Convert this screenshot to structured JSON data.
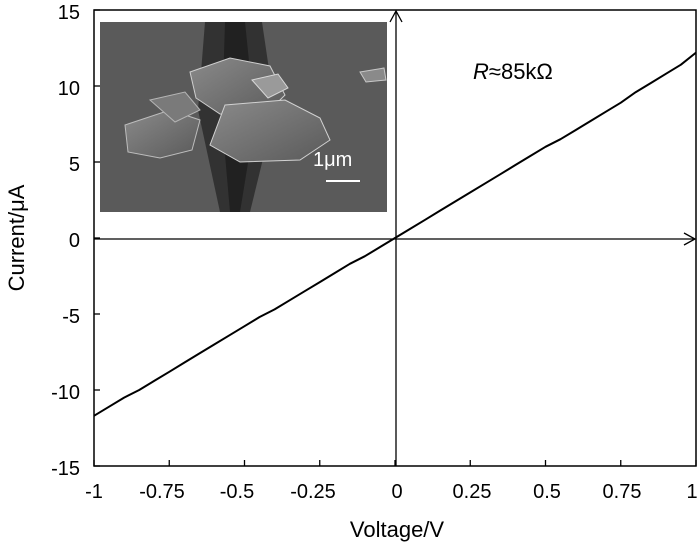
{
  "chart_data": {
    "type": "line",
    "xlabel": "Voltage/V",
    "ylabel": "Current/μA",
    "xlim": [
      -1,
      1
    ],
    "ylim": [
      -15,
      15
    ],
    "x_ticks": [
      -1,
      -0.75,
      -0.5,
      -0.25,
      0,
      0.25,
      0.5,
      0.75,
      1
    ],
    "x_tick_labels": [
      "-1",
      "-0.75",
      "-0.5",
      "-0.25",
      "0",
      "0.25",
      "0.5",
      "0.75",
      "1"
    ],
    "y_ticks": [
      -15,
      -10,
      -5,
      0,
      5,
      10,
      15
    ],
    "y_tick_labels": [
      "-15",
      "-10",
      "-5",
      "0",
      "5",
      "10",
      "15"
    ],
    "annotation": {
      "italic": "R",
      "rest": "≈85kΩ"
    },
    "inset": {
      "scale_bar_label": "1μm"
    },
    "grid": false,
    "series": [
      {
        "x": [
          -1.0,
          -0.95,
          -0.9,
          -0.85,
          -0.8,
          -0.75,
          -0.7,
          -0.65,
          -0.6,
          -0.55,
          -0.5,
          -0.45,
          -0.4,
          -0.35,
          -0.3,
          -0.25,
          -0.2,
          -0.15,
          -0.1,
          -0.05,
          0.0,
          0.05,
          0.1,
          0.15,
          0.2,
          0.25,
          0.3,
          0.35,
          0.4,
          0.45,
          0.5,
          0.55,
          0.6,
          0.65,
          0.7,
          0.75,
          0.8,
          0.85,
          0.9,
          0.95,
          1.0
        ],
        "y": [
          -11.7,
          -11.1,
          -10.5,
          -10.0,
          -9.4,
          -8.8,
          -8.2,
          -7.6,
          -7.0,
          -6.4,
          -5.8,
          -5.2,
          -4.7,
          -4.1,
          -3.5,
          -2.9,
          -2.3,
          -1.7,
          -1.2,
          -0.6,
          0.0,
          0.6,
          1.2,
          1.8,
          2.4,
          3.0,
          3.6,
          4.2,
          4.8,
          5.4,
          6.0,
          6.5,
          7.1,
          7.7,
          8.3,
          8.9,
          9.6,
          10.2,
          10.8,
          11.4,
          12.2
        ],
        "color": "#000000"
      }
    ]
  }
}
